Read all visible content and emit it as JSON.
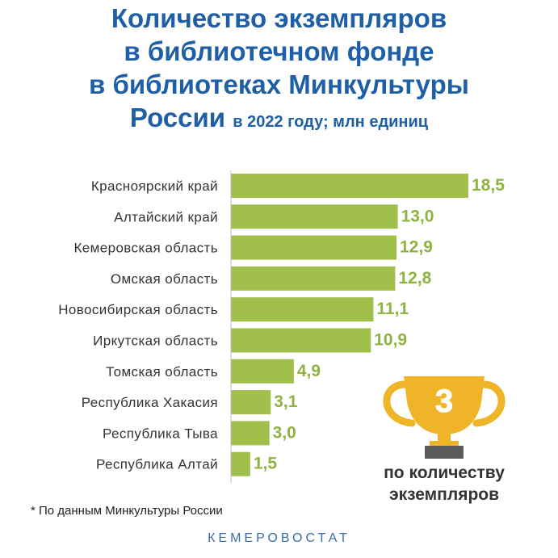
{
  "title": {
    "line1": "Количество экземпляров",
    "line2": "в библиотечном фонде",
    "line3": "в библиотеках Минкультуры",
    "line4_main": "России",
    "line4_rest": "в 2022 году; млн единиц"
  },
  "colors": {
    "title": "#1f5fa6",
    "bar": "#a1bf4b",
    "value_label": "#8fb340",
    "trophy": "#f0b429",
    "trophy_base": "#5a5a5a"
  },
  "chart_data": {
    "type": "bar",
    "orientation": "horizontal",
    "categories": [
      "Красноярский край",
      "Алтайский край",
      "Кемеровская область",
      "Омская область",
      "Новосибирская область",
      "Иркутская область",
      "Томская область",
      "Республика Хакасия",
      "Республика Тыва",
      "Республика Алтай"
    ],
    "values": [
      18.5,
      13.0,
      12.9,
      12.8,
      11.1,
      10.9,
      4.9,
      3.1,
      3.0,
      1.5
    ],
    "value_labels": [
      "18,5",
      "13,0",
      "12,9",
      "12,8",
      "11,1",
      "10,9",
      "4,9",
      "3,1",
      "3,0",
      "1,5"
    ],
    "xlim": [
      0,
      18.5
    ],
    "grid": false
  },
  "award": {
    "icon": "trophy-icon",
    "rank": "3",
    "line1": "по количеству",
    "line2": "экземпляров"
  },
  "footnote": "* По данным Минкультуры России",
  "source": "КЕМЕРОВОСТАТ"
}
